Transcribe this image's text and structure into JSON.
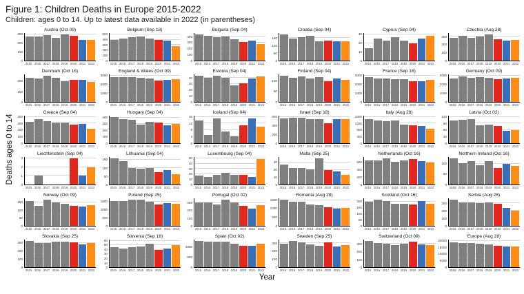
{
  "header": {
    "title": "Figure 1: Children Deaths in Europe 2015-2022",
    "subtitle": "Children: ages 0 to 14. Up to latest data available in 2022 (in parentheses)"
  },
  "axes": {
    "y_label": "Deaths ages 0 to 14",
    "x_label": "Year"
  },
  "chart_data": {
    "type": "bar",
    "layout": "small-multiples 6x6, shared x years 2015-2022, independent y scales, horizontal gridlines on",
    "categories": [
      "2015",
      "2016",
      "2017",
      "2018",
      "2019",
      "2020",
      "2021",
      "2022"
    ],
    "colors": {
      "gray": "#7f7f7f",
      "red": "#e0281f",
      "blue": "#3b6eb5",
      "orange": "#fa8c17"
    },
    "year_colors": [
      "gray",
      "gray",
      "gray",
      "gray",
      "gray",
      "red",
      "blue",
      "orange"
    ],
    "panels": [
      {
        "label": "Austria (Oct 09)",
        "yticks": [
          0,
          100,
          200,
          300
        ],
        "values": [
          275,
          275,
          290,
          260,
          300,
          285,
          240,
          235
        ]
      },
      {
        "label": "Belgium (Sep 18)",
        "yticks": [
          0,
          100,
          200,
          300,
          400,
          500
        ],
        "values": [
          400,
          415,
          440,
          455,
          425,
          400,
          375,
          270
        ]
      },
      {
        "label": "Bulgaria (Sep 04)",
        "yticks": [
          0,
          100,
          200,
          300,
          400
        ],
        "values": [
          440,
          420,
          390,
          400,
          360,
          310,
          330,
          280
        ]
      },
      {
        "label": "Croatia (Sep 04)",
        "yticks": [
          0,
          50,
          100,
          150
        ],
        "values": [
          175,
          145,
          155,
          165,
          130,
          135,
          130,
          130
        ]
      },
      {
        "label": "Cyprus (Sep 04)",
        "yticks": [
          0,
          10,
          20,
          30
        ],
        "values": [
          14,
          25,
          23,
          27,
          23,
          20,
          25,
          28
        ]
      },
      {
        "label": "Czechia (Aug 28)",
        "yticks": [
          0,
          100,
          200,
          300
        ],
        "values": [
          290,
          310,
          290,
          300,
          330,
          270,
          255,
          260
        ]
      },
      {
        "label": "Denmark (Oct 16)",
        "yticks": [
          0,
          100,
          200
        ],
        "values": [
          235,
          230,
          255,
          235,
          200,
          215,
          215,
          195
        ]
      },
      {
        "label": "England & Wales (Oct 09)",
        "yticks": [
          0,
          1000,
          2000,
          3000
        ],
        "values": [
          2850,
          2800,
          2850,
          2750,
          2700,
          2450,
          2500,
          2600
        ]
      },
      {
        "label": "Estonia (Sep 04)",
        "yticks": [
          0,
          10,
          20,
          30,
          40
        ],
        "values": [
          44,
          40,
          44,
          41,
          28,
          31,
          39,
          43
        ]
      },
      {
        "label": "Finland (Sep 04)",
        "yticks": [
          0,
          50,
          100
        ],
        "values": [
          125,
          115,
          120,
          112,
          118,
          100,
          110,
          105
        ]
      },
      {
        "label": "France (Sep 18)",
        "yticks": [
          0,
          1000,
          2000,
          3000
        ],
        "values": [
          2800,
          2650,
          2650,
          2600,
          2600,
          2400,
          2350,
          2550
        ]
      },
      {
        "label": "Germany (Oct 09)",
        "yticks": [
          0,
          1000,
          2000,
          3000
        ],
        "values": [
          2650,
          2900,
          2750,
          2800,
          2750,
          2600,
          2650,
          2750
        ]
      },
      {
        "label": "Greece (Sep 04)",
        "yticks": [
          0,
          100,
          200,
          300,
          400
        ],
        "values": [
          325,
          370,
          335,
          310,
          320,
          285,
          290,
          225
        ]
      },
      {
        "label": "Hungary (Sep 04)",
        "yticks": [
          0,
          100,
          200,
          300,
          400
        ],
        "values": [
          410,
          375,
          370,
          295,
          335,
          325,
          285,
          300
        ]
      },
      {
        "label": "Iceland (Sep 04)",
        "yticks": [
          0,
          4,
          8,
          12,
          16
        ],
        "values": [
          14,
          5,
          15,
          7,
          4,
          11,
          15,
          10
        ]
      },
      {
        "label": "Israel (Sep 18)",
        "yticks": [
          0,
          200,
          400,
          600
        ],
        "values": [
          575,
          590,
          590,
          550,
          555,
          455,
          545,
          550
        ]
      },
      {
        "label": "Italy (Aug 28)",
        "yticks": [
          0,
          400,
          800,
          1200,
          1600
        ],
        "values": [
          1450,
          1400,
          1330,
          1370,
          1130,
          1100,
          1030,
          890
        ]
      },
      {
        "label": "Latvia (Oct 02)",
        "yticks": [
          0,
          30,
          60,
          90,
          120
        ],
        "values": [
          103,
          107,
          110,
          82,
          84,
          79,
          58,
          60
        ]
      },
      {
        "label": "Liechtenstein (Sep 04)",
        "yticks": [
          0,
          1,
          2,
          3
        ],
        "values": [
          0,
          1,
          0,
          0,
          0,
          3,
          1,
          2
        ]
      },
      {
        "label": "Lithuania (Sep 04)",
        "yticks": [
          0,
          50,
          100,
          150
        ],
        "values": [
          160,
          143,
          100,
          95,
          100,
          75,
          90,
          63
        ]
      },
      {
        "label": "Luxembourg (Sep 04)",
        "yticks": [
          0,
          10,
          20,
          30,
          40,
          50
        ],
        "values": [
          17,
          14,
          19,
          22,
          19,
          19,
          14,
          48
        ]
      },
      {
        "label": "Malta (Sep 25)",
        "yticks": [
          0,
          10,
          20,
          30
        ],
        "values": [
          27,
          23,
          23,
          21,
          36,
          20,
          18,
          13
        ]
      },
      {
        "label": "Netherlands (Oct 16)",
        "yticks": [
          0,
          200,
          400,
          600
        ],
        "values": [
          640,
          650,
          705,
          620,
          640,
          680,
          630,
          600
        ]
      },
      {
        "label": "Northern Ireland (Oct 16)",
        "yticks": [
          0,
          50,
          100
        ],
        "values": [
          125,
          102,
          110,
          93,
          113,
          80,
          100,
          90
        ]
      },
      {
        "label": "Norway (Oct 09)",
        "yticks": [
          0,
          50,
          100,
          150
        ],
        "values": [
          160,
          130,
          168,
          148,
          140,
          127,
          124,
          133
        ]
      },
      {
        "label": "Poland (Sep 25)",
        "yticks": [
          0,
          500,
          1000,
          1500
        ],
        "values": [
          1550,
          1530,
          1620,
          1600,
          1500,
          1320,
          1390,
          1370
        ]
      },
      {
        "label": "Portugal (Oct 02)",
        "yticks": [
          0,
          100,
          200,
          300
        ],
        "values": [
          310,
          305,
          285,
          345,
          310,
          265,
          230,
          270
        ]
      },
      {
        "label": "Romania (Aug 28)",
        "yticks": [
          0,
          500,
          1000,
          1500
        ],
        "values": [
          1530,
          1410,
          1400,
          1260,
          1190,
          1080,
          1010,
          1030
        ]
      },
      {
        "label": "Scotland (Oct 16)",
        "yticks": [
          0,
          50,
          100,
          150,
          200
        ],
        "values": [
          200,
          218,
          205,
          183,
          185,
          180,
          205,
          183
        ]
      },
      {
        "label": "Serbia (Aug 28)",
        "yticks": [
          0,
          100,
          200,
          300
        ],
        "values": [
          350,
          310,
          315,
          305,
          315,
          295,
          240,
          205
        ]
      },
      {
        "label": "Slovakia (Sep 25)",
        "yticks": [
          0,
          100,
          200,
          300
        ],
        "values": [
          325,
          300,
          297,
          312,
          320,
          305,
          280,
          300
        ]
      },
      {
        "label": "Slovenia (Sep 18)",
        "yticks": [
          0,
          10,
          20,
          30,
          40,
          50,
          60
        ],
        "values": [
          45,
          42,
          46,
          47,
          54,
          40,
          43,
          50
        ]
      },
      {
        "label": "Spain (Oct 02)",
        "yticks": [
          0,
          500,
          1000
        ],
        "values": [
          1300,
          1280,
          1260,
          1250,
          1170,
          1060,
          1050,
          1170
        ]
      },
      {
        "label": "Sweden (Sep 25)",
        "yticks": [
          0,
          100,
          200,
          300
        ],
        "values": [
          295,
          330,
          315,
          290,
          265,
          315,
          262,
          275
        ]
      },
      {
        "label": "Switzerland (Oct 09)",
        "yticks": [
          0,
          100,
          200,
          300
        ],
        "values": [
          340,
          315,
          305,
          290,
          305,
          330,
          295,
          290
        ]
      },
      {
        "label": "Europe (Aug 28)",
        "yticks": [
          0,
          5000,
          10000,
          15000,
          20000
        ],
        "values": [
          18800,
          18600,
          18400,
          17900,
          17200,
          16100,
          15700,
          16000
        ]
      }
    ]
  }
}
